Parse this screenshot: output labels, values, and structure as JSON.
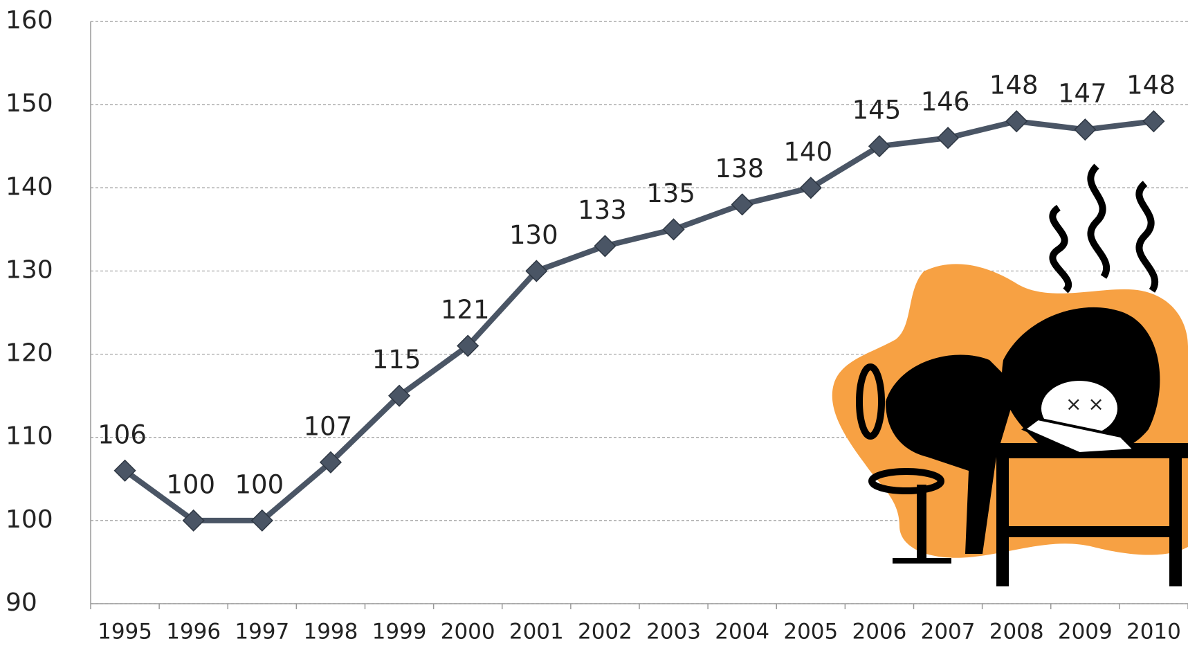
{
  "chart_data": {
    "type": "line",
    "categories": [
      "1995",
      "1996",
      "1997",
      "1998",
      "1999",
      "2000",
      "2001",
      "2002",
      "2003",
      "2004",
      "2005",
      "2006",
      "2007",
      "2008",
      "2009",
      "2010"
    ],
    "values": [
      106,
      100,
      100,
      107,
      115,
      121,
      130,
      133,
      135,
      138,
      140,
      145,
      146,
      148,
      147,
      148
    ],
    "color": "#4a5565",
    "ylim": [
      90,
      160
    ],
    "yticks": [
      90,
      100,
      110,
      120,
      130,
      140,
      150,
      160
    ],
    "grid": true
  }
}
